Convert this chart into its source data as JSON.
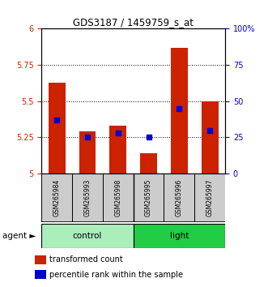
{
  "title": "GDS3187 / 1459759_s_at",
  "samples": [
    "GSM265984",
    "GSM265993",
    "GSM265998",
    "GSM265995",
    "GSM265996",
    "GSM265997"
  ],
  "groups": [
    "control",
    "control",
    "control",
    "light",
    "light",
    "light"
  ],
  "transformed_count": [
    5.63,
    5.29,
    5.33,
    5.14,
    5.87,
    5.5
  ],
  "percentile_rank": [
    37.0,
    25.0,
    28.0,
    25.0,
    45.0,
    30.0
  ],
  "ylim_left": [
    5.0,
    6.0
  ],
  "ylim_right": [
    0.0,
    100.0
  ],
  "yticks_left": [
    5.0,
    5.25,
    5.5,
    5.75,
    6.0
  ],
  "ytick_labels_left": [
    "5",
    "5.25",
    "5.5",
    "5.75",
    "6"
  ],
  "yticks_right": [
    0,
    25,
    50,
    75,
    100
  ],
  "ytick_labels_right": [
    "0",
    "25",
    "50",
    "75",
    "100%"
  ],
  "bar_color": "#CC2200",
  "marker_color": "#0000CC",
  "bar_width": 0.55,
  "background_color": "#ffffff",
  "tick_color_left": "#CC2200",
  "tick_color_right": "#0000CC",
  "control_color": "#AAEEBB",
  "light_color": "#22CC44",
  "sample_box_color": "#CCCCCC",
  "gridline_color": "#000000"
}
